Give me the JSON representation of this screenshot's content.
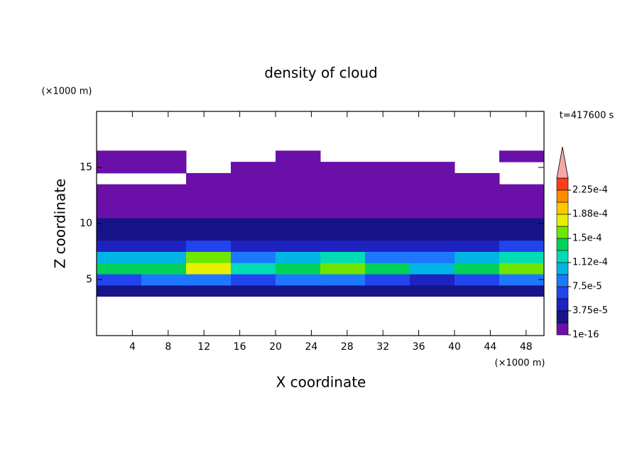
{
  "chart_data": {
    "type": "contour",
    "title": "density of cloud",
    "x_label": "X coordinate",
    "y_label": "Z coordinate",
    "x_unit": "(×1000 m)",
    "y_unit": "(×1000 m)",
    "annotation": "t=417600 s",
    "xlim": [
      0,
      50
    ],
    "ylim": [
      0,
      20
    ],
    "xticks": [
      4,
      8,
      12,
      16,
      20,
      24,
      28,
      32,
      36,
      40,
      44,
      48
    ],
    "yticks": [
      5,
      10,
      15
    ],
    "x_edges": [
      0,
      5,
      10,
      15,
      20,
      25,
      30,
      35,
      40,
      45,
      50
    ],
    "z_edges": [
      3.5,
      4.5,
      5.5,
      6.5,
      7.5,
      8.5,
      9.5,
      10.5,
      11.5,
      12.5,
      13.5,
      14.5,
      15.5,
      16.5
    ],
    "values": [
      [
        2.5e-05,
        2.5e-05,
        2.5e-05,
        2.5e-05,
        2.5e-05,
        2.5e-05,
        2.5e-05,
        2.5e-05,
        2.5e-05,
        2.5e-05
      ],
      [
        7e-05,
        7.5e-05,
        8e-05,
        7e-05,
        7.5e-05,
        7.5e-05,
        6e-05,
        5e-05,
        7e-05,
        7.5e-05
      ],
      [
        0.000135,
        0.000145,
        0.00018,
        0.00012,
        0.000145,
        0.00016,
        0.00014,
        0.00011,
        0.000135,
        0.00016
      ],
      [
        9.5e-05,
        0.00011,
        0.00015,
        9e-05,
        0.000105,
        0.00012,
        9e-05,
        8e-05,
        9.5e-05,
        0.000125
      ],
      [
        4.5e-05,
        5e-05,
        6e-05,
        5.5e-05,
        4.5e-05,
        4.5e-05,
        4e-05,
        5e-05,
        5.5e-05,
        6e-05
      ],
      [
        3e-05,
        3e-05,
        3.5e-05,
        3e-05,
        2.5e-05,
        3e-05,
        2.5e-05,
        3e-05,
        3e-05,
        3.5e-05
      ],
      [
        2e-05,
        2e-05,
        2.5e-05,
        2e-05,
        2e-05,
        2e-05,
        2e-05,
        2e-05,
        2e-05,
        2.5e-05
      ],
      [
        1e-05,
        1.2e-05,
        1.5e-05,
        1e-05,
        1e-05,
        1.2e-05,
        1e-05,
        1e-05,
        1.2e-05,
        1e-05
      ],
      [
        5e-06,
        5e-06,
        5e-06,
        5e-06,
        5e-06,
        5e-06,
        5e-06,
        5e-06,
        5e-06,
        5e-06
      ],
      [
        5e-06,
        5e-06,
        5e-06,
        5e-06,
        5e-06,
        5e-06,
        5e-06,
        5e-06,
        5e-06,
        5e-06
      ],
      [
        null,
        null,
        5e-06,
        5e-06,
        5e-06,
        5e-06,
        5e-06,
        5e-06,
        5e-06,
        null
      ],
      [
        5e-06,
        5e-06,
        null,
        5e-06,
        5e-06,
        5e-06,
        5e-06,
        5e-06,
        null,
        null
      ],
      [
        5e-06,
        5e-06,
        null,
        null,
        5e-06,
        null,
        null,
        null,
        null,
        5e-06
      ]
    ],
    "levels": [
      1e-16,
      1.875e-05,
      3.75e-05,
      5.625e-05,
      7.5e-05,
      9.375e-05,
      0.0001125,
      0.00013125,
      0.00015,
      0.00016875,
      0.0001875,
      0.00020625,
      0.000225,
      0.00024375
    ],
    "colors": [
      "#6a10a8",
      "#17148a",
      "#1e22c0",
      "#2244ee",
      "#1e78ff",
      "#00b4e6",
      "#00dcb4",
      "#00d25a",
      "#6ee600",
      "#e6f000",
      "#ffc800",
      "#ff8c00",
      "#ff3c14"
    ],
    "extend_color": "#f4a8a8",
    "colorbar_ticks": [
      {
        "value": 1e-16,
        "label": "1e-16"
      },
      {
        "value": 3.75e-05,
        "label": "3.75e-5"
      },
      {
        "value": 7.5e-05,
        "label": "7.5e-5"
      },
      {
        "value": 0.0001125,
        "label": "1.12e-4"
      },
      {
        "value": 0.00015,
        "label": "1.5e-4"
      },
      {
        "value": 0.0001875,
        "label": "1.88e-4"
      },
      {
        "value": 0.000225,
        "label": "2.25e-4"
      }
    ]
  }
}
